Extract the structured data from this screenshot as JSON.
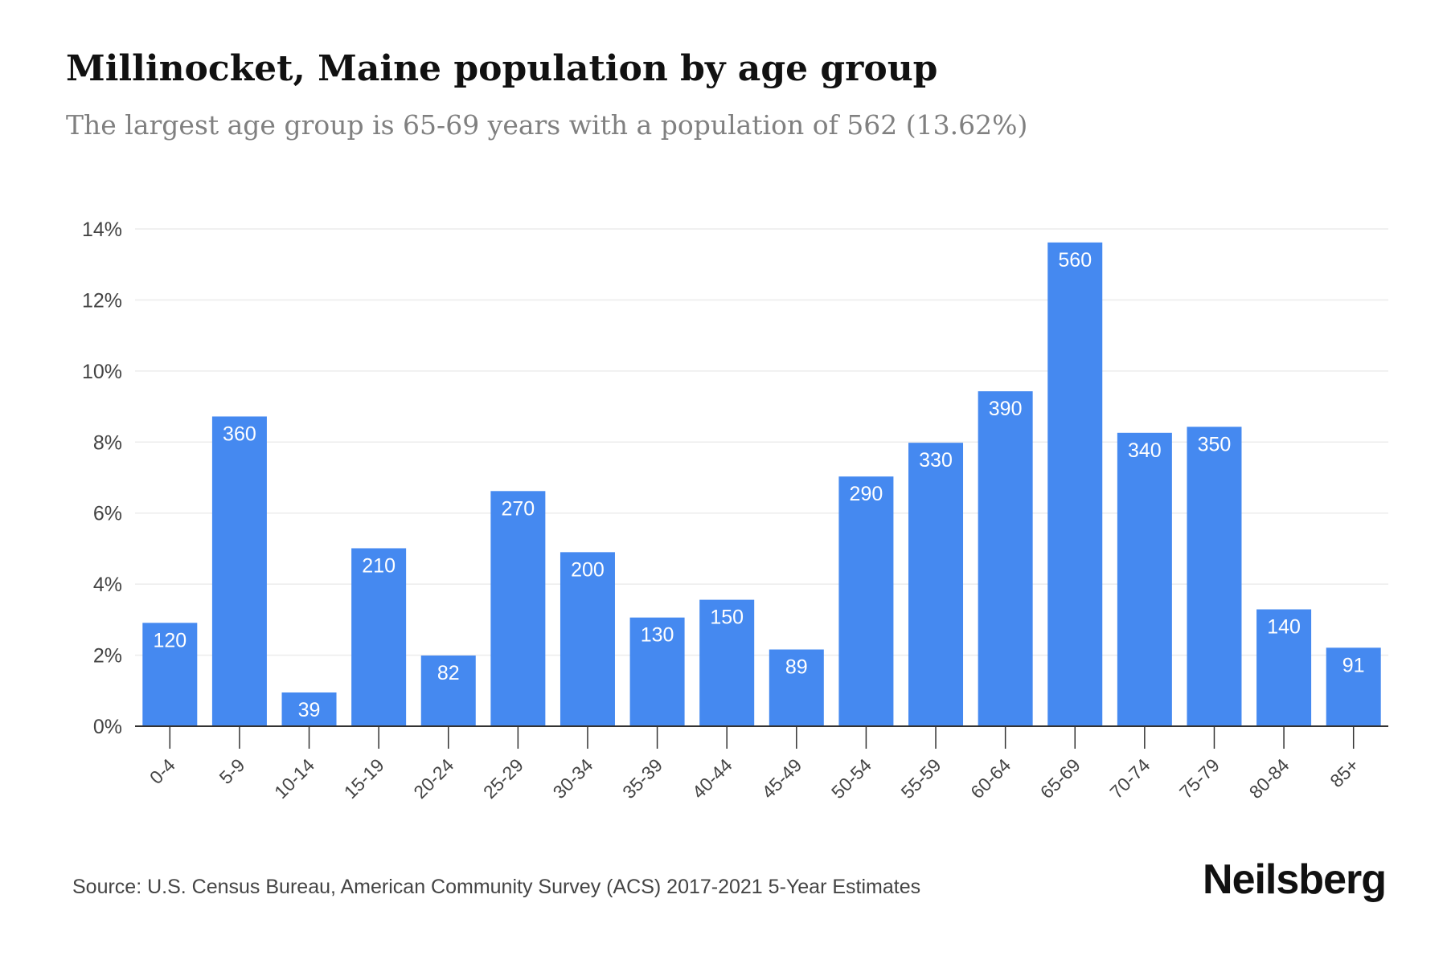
{
  "title": "Millinocket, Maine population by age group",
  "subtitle": "The largest age group is 65-69 years with a population of 562 (13.62%)",
  "source": "Source: U.S. Census Bureau, American Community Survey (ACS) 2017-2021 5-Year Estimates",
  "brand": "Neilsberg",
  "colors": {
    "bar": "#4589f0",
    "grid": "#ececec",
    "axis": "#333333",
    "bar_label": "#ffffff"
  },
  "chart_data": {
    "type": "bar",
    "title": "Millinocket, Maine population by age group",
    "subtitle": "The largest age group is 65-69 years with a population of 562 (13.62%)",
    "categories": [
      "0-4",
      "5-9",
      "10-14",
      "15-19",
      "20-24",
      "25-29",
      "30-34",
      "35-39",
      "40-44",
      "45-49",
      "50-54",
      "55-59",
      "60-64",
      "65-69",
      "70-74",
      "75-79",
      "80-84",
      "85+"
    ],
    "values": [
      2.91,
      8.72,
      0.95,
      5.01,
      1.99,
      6.62,
      4.9,
      3.06,
      3.56,
      2.16,
      7.03,
      7.98,
      9.43,
      13.62,
      8.26,
      8.43,
      3.29,
      2.21
    ],
    "data_labels": [
      "120",
      "360",
      "39",
      "210",
      "82",
      "270",
      "200",
      "130",
      "150",
      "89",
      "290",
      "330",
      "390",
      "560",
      "340",
      "350",
      "140",
      "91"
    ],
    "yticks": [
      "0%",
      "2%",
      "4%",
      "6%",
      "8%",
      "10%",
      "12%",
      "14%"
    ],
    "ylim": [
      0,
      14
    ],
    "xlabel": "",
    "ylabel": "",
    "grid": true,
    "legend": "none"
  }
}
